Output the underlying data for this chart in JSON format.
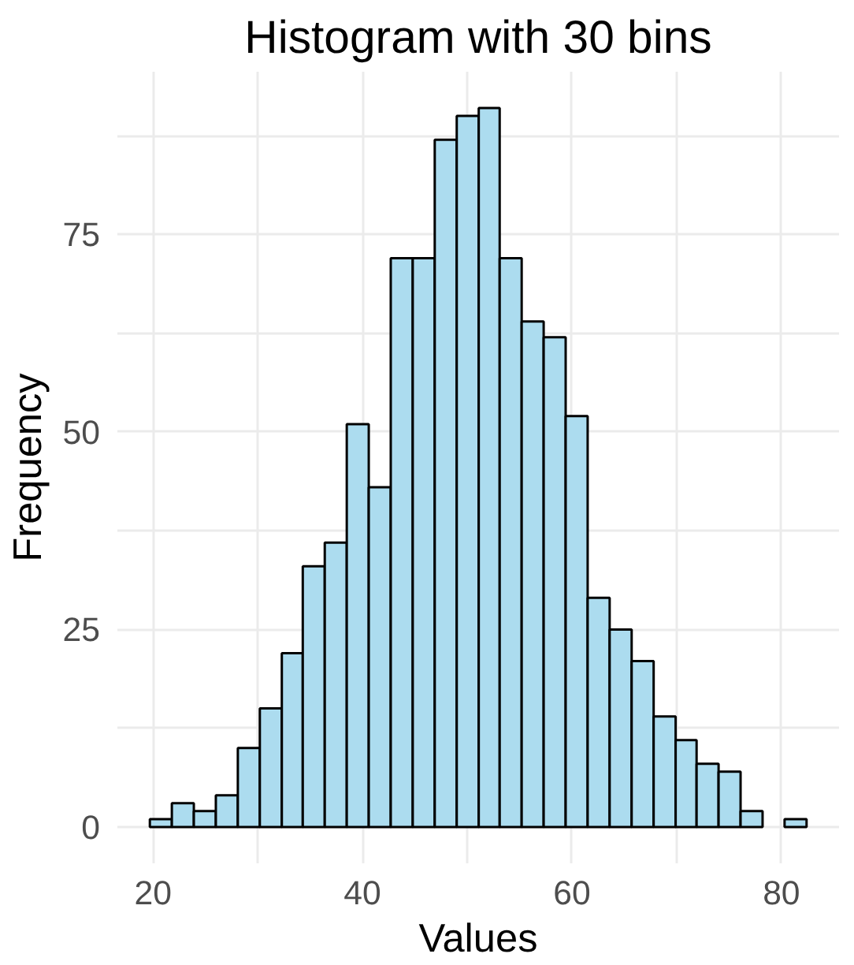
{
  "chart_data": {
    "type": "histogram",
    "title": "Histogram with 30 bins",
    "xlabel": "Values",
    "ylabel": "Frequency",
    "bins": [
      19.7,
      21.8,
      23.9,
      26.0,
      28.1,
      30.2,
      32.3,
      34.3,
      36.4,
      38.5,
      40.6,
      42.7,
      44.8,
      46.9,
      49.0,
      51.1,
      53.1,
      55.2,
      57.3,
      59.4,
      61.5,
      63.6,
      65.7,
      67.8,
      69.9,
      71.9,
      74.0,
      76.1,
      78.2,
      80.3,
      82.4
    ],
    "values": [
      1,
      3,
      2,
      4,
      10,
      15,
      22,
      33,
      36,
      51,
      43,
      72,
      72,
      87,
      90,
      91,
      72,
      64,
      62,
      52,
      29,
      25,
      21,
      14,
      11,
      8,
      7,
      2,
      0,
      1
    ],
    "color": "#acdcef",
    "xlim": [
      16.6,
      85.5
    ],
    "ylim": [
      -4.6,
      95.6
    ],
    "xticks": [
      20,
      {
        "value": 30,
        "label": null
      },
      40,
      {
        "value": 50,
        "label": null
      },
      60,
      {
        "value": 70,
        "label": null
      },
      80
    ],
    "yticks": [
      0,
      {
        "value": 12.5,
        "label": null
      },
      25,
      {
        "value": 37.5,
        "label": null
      },
      50,
      {
        "value": 62.5,
        "label": null
      },
      75,
      {
        "value": 87.5,
        "label": null
      }
    ],
    "grid": true
  }
}
